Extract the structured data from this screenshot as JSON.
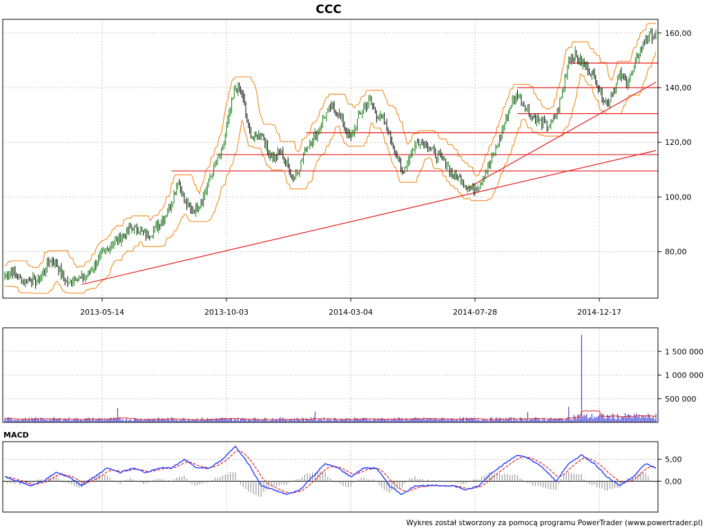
{
  "chart_data": [
    {
      "type": "candlestick",
      "title": "CCC",
      "x_ticks": [
        "2013-05-14",
        "2013-10-03",
        "2014-03-04",
        "2014-07-28",
        "2014-12-17"
      ],
      "ylim": [
        63,
        165
      ],
      "y_ticks": [
        80,
        100,
        120,
        140,
        160
      ],
      "y_tick_labels": [
        "80,00",
        "100,00",
        "120,00",
        "140,00",
        "160,00"
      ],
      "grid": true,
      "close_series": [
        [
          0,
          71
        ],
        [
          5,
          73
        ],
        [
          10,
          71
        ],
        [
          15,
          69
        ],
        [
          20,
          70
        ],
        [
          25,
          69
        ],
        [
          30,
          72
        ],
        [
          35,
          77
        ],
        [
          40,
          76
        ],
        [
          45,
          71
        ],
        [
          50,
          68
        ],
        [
          55,
          71
        ],
        [
          60,
          70
        ],
        [
          65,
          72
        ],
        [
          70,
          75
        ],
        [
          75,
          78
        ],
        [
          80,
          81
        ],
        [
          85,
          84
        ],
        [
          90,
          85
        ],
        [
          95,
          87
        ],
        [
          100,
          89
        ],
        [
          105,
          88
        ],
        [
          110,
          86
        ],
        [
          115,
          87
        ],
        [
          120,
          90
        ],
        [
          125,
          93
        ],
        [
          130,
          98
        ],
        [
          135,
          106
        ],
        [
          140,
          99
        ],
        [
          145,
          95
        ],
        [
          150,
          96
        ],
        [
          155,
          100
        ],
        [
          160,
          107
        ],
        [
          165,
          112
        ],
        [
          170,
          118
        ],
        [
          175,
          130
        ],
        [
          180,
          140
        ],
        [
          185,
          138
        ],
        [
          190,
          125
        ],
        [
          195,
          121
        ],
        [
          200,
          124
        ],
        [
          205,
          117
        ],
        [
          210,
          114
        ],
        [
          215,
          117
        ],
        [
          220,
          112
        ],
        [
          225,
          107
        ],
        [
          230,
          111
        ],
        [
          235,
          118
        ],
        [
          240,
          121
        ],
        [
          245,
          125
        ],
        [
          250,
          130
        ],
        [
          255,
          133
        ],
        [
          260,
          131
        ],
        [
          265,
          126
        ],
        [
          270,
          121
        ],
        [
          275,
          128
        ],
        [
          280,
          133
        ],
        [
          285,
          135
        ],
        [
          290,
          130
        ],
        [
          295,
          128
        ],
        [
          300,
          123
        ],
        [
          305,
          116
        ],
        [
          310,
          109
        ],
        [
          315,
          114
        ],
        [
          320,
          119
        ],
        [
          325,
          121
        ],
        [
          330,
          119
        ],
        [
          335,
          116
        ],
        [
          340,
          114
        ],
        [
          345,
          112
        ],
        [
          350,
          108
        ],
        [
          355,
          107
        ],
        [
          360,
          104
        ],
        [
          365,
          103
        ],
        [
          370,
          104
        ],
        [
          375,
          109
        ],
        [
          380,
          114
        ],
        [
          385,
          120
        ],
        [
          390,
          127
        ],
        [
          395,
          134
        ],
        [
          400,
          138
        ],
        [
          405,
          134
        ],
        [
          410,
          130
        ],
        [
          415,
          128
        ],
        [
          420,
          127
        ],
        [
          425,
          126
        ],
        [
          430,
          130
        ],
        [
          435,
          138
        ],
        [
          440,
          151
        ],
        [
          445,
          152
        ],
        [
          450,
          149
        ],
        [
          455,
          147
        ],
        [
          460,
          144
        ],
        [
          465,
          138
        ],
        [
          470,
          134
        ],
        [
          475,
          139
        ],
        [
          480,
          145
        ],
        [
          485,
          142
        ],
        [
          490,
          146
        ],
        [
          495,
          153
        ],
        [
          500,
          158
        ],
        [
          505,
          159
        ]
      ],
      "trendlines": [
        {
          "from": [
            60,
            68
          ],
          "to": [
            508,
            117
          ]
        },
        {
          "from": [
            360,
            103
          ],
          "to": [
            508,
            142
          ]
        }
      ],
      "support_resistance_levels": [
        109.5,
        115.5,
        123.5,
        130.5,
        140,
        149
      ],
      "bollinger_band_width": 6
    },
    {
      "type": "bar",
      "panel": "volume",
      "ylim": [
        0,
        2000000
      ],
      "y_ticks": [
        500000,
        1000000,
        1500000
      ],
      "y_tick_labels": [
        "500 000",
        "1 000 000",
        "1 500 000"
      ],
      "spikes": [
        {
          "x": 88,
          "value": 300000
        },
        {
          "x": 242,
          "value": 230000
        },
        {
          "x": 440,
          "value": 330000
        },
        {
          "x": 450,
          "value": 1850000
        },
        {
          "x": 408,
          "value": 220000
        },
        {
          "x": 500,
          "value": 150000
        }
      ],
      "baseline_volume": 60000
    },
    {
      "type": "line",
      "title": "MACD",
      "ylim": [
        -7,
        9
      ],
      "y_ticks": [
        0,
        5
      ],
      "y_tick_labels": [
        "0,00",
        "5,00"
      ],
      "macd_series": [
        [
          0,
          1
        ],
        [
          10,
          0
        ],
        [
          20,
          -1
        ],
        [
          30,
          0
        ],
        [
          40,
          2
        ],
        [
          50,
          1
        ],
        [
          60,
          -1
        ],
        [
          70,
          1
        ],
        [
          80,
          3
        ],
        [
          90,
          2
        ],
        [
          100,
          3
        ],
        [
          110,
          2
        ],
        [
          120,
          3
        ],
        [
          130,
          3
        ],
        [
          140,
          5
        ],
        [
          150,
          3
        ],
        [
          160,
          3
        ],
        [
          170,
          5
        ],
        [
          180,
          8
        ],
        [
          190,
          4
        ],
        [
          200,
          -1
        ],
        [
          210,
          -2
        ],
        [
          220,
          -3
        ],
        [
          230,
          -2
        ],
        [
          240,
          1
        ],
        [
          250,
          4
        ],
        [
          260,
          3
        ],
        [
          270,
          1
        ],
        [
          280,
          3
        ],
        [
          290,
          3
        ],
        [
          300,
          -1
        ],
        [
          310,
          -3
        ],
        [
          320,
          -1
        ],
        [
          330,
          -1
        ],
        [
          340,
          -1
        ],
        [
          350,
          -1
        ],
        [
          360,
          -2
        ],
        [
          370,
          -1
        ],
        [
          380,
          2
        ],
        [
          390,
          4
        ],
        [
          400,
          6
        ],
        [
          410,
          5
        ],
        [
          420,
          3
        ],
        [
          430,
          0
        ],
        [
          440,
          4
        ],
        [
          450,
          6
        ],
        [
          460,
          4
        ],
        [
          470,
          1
        ],
        [
          480,
          -1
        ],
        [
          490,
          1
        ],
        [
          500,
          4
        ],
        [
          508,
          3
        ]
      ]
    }
  ],
  "footer": {
    "credit": "Wykres został stworzony za pomocą programu PowerTrader (www.powertrader.pl)"
  },
  "colors": {
    "candle_up": "#0a7a0a",
    "candle_down": "#000000",
    "bollinger": "#f08a1c",
    "trendline": "#e51b1b",
    "volume_bar": "#2222cc",
    "volume_avg": "#e51b1b",
    "macd_line": "#1f3cff",
    "signal_line": "#e51b1b",
    "histogram": "#888888"
  }
}
